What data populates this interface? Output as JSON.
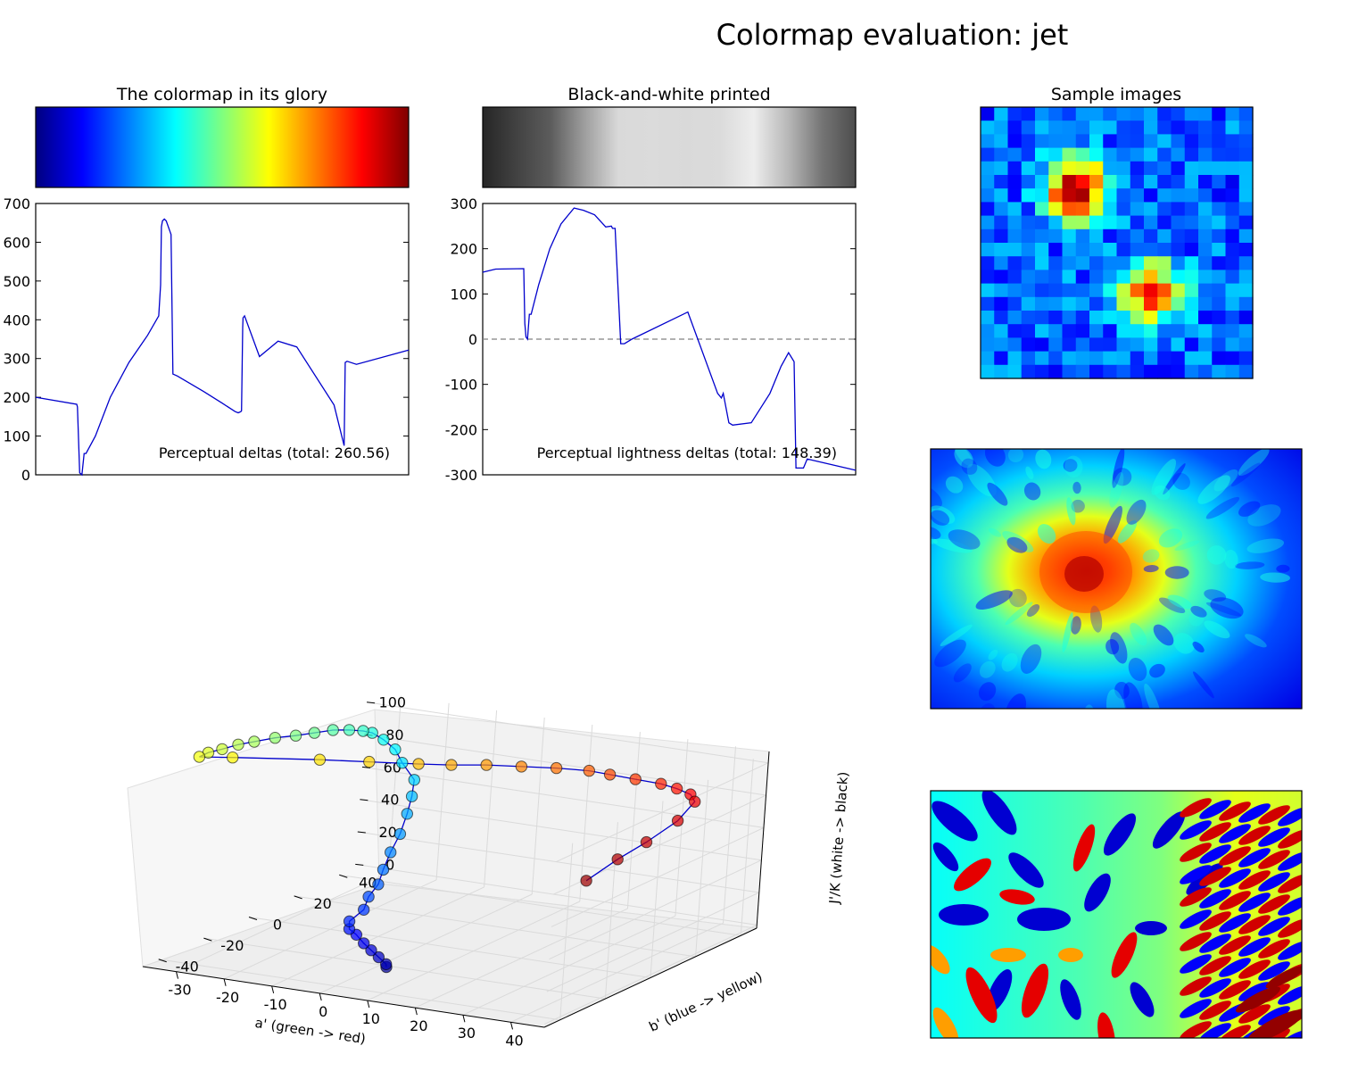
{
  "figure": {
    "title": "Colormap evaluation: jet",
    "colormap_name": "jet",
    "colormap_stops": [
      "#00007f",
      "#0000ff",
      "#007fff",
      "#00ffff",
      "#7fff7f",
      "#ffff00",
      "#ff7f00",
      "#ff0000",
      "#7f0000"
    ],
    "line_color": "#0000cc"
  },
  "chart_data": [
    {
      "type": "colorbar",
      "title": "The colormap in its glory",
      "colormap": "jet"
    },
    {
      "type": "colorbar",
      "title": "Black-and-white printed",
      "colormap": "jet-grayscale",
      "gray_levels": [
        0.15,
        0.26,
        0.36,
        0.62,
        0.85,
        0.86,
        0.85,
        0.86,
        0.93,
        0.72,
        0.46,
        0.3
      ]
    },
    {
      "type": "line",
      "annotation": "Perceptual deltas (total: 260.56)",
      "xlim": [
        0,
        1
      ],
      "ylim": [
        0,
        700
      ],
      "yticks": [
        0,
        100,
        200,
        300,
        400,
        500,
        600,
        700
      ],
      "x": [
        0,
        0.11,
        0.112,
        0.118,
        0.124,
        0.13,
        0.135,
        0.16,
        0.2,
        0.25,
        0.3,
        0.33,
        0.335,
        0.337,
        0.34,
        0.345,
        0.35,
        0.363,
        0.368,
        0.38,
        0.45,
        0.5,
        0.535,
        0.543,
        0.55,
        0.552,
        0.555,
        0.556,
        0.56,
        0.6,
        0.65,
        0.7,
        0.8,
        0.827,
        0.83,
        0.835,
        0.86,
        1.0
      ],
      "y": [
        200,
        182,
        175,
        5,
        0,
        55,
        55,
        100,
        200,
        290,
        360,
        410,
        490,
        640,
        655,
        660,
        655,
        620,
        260,
        255,
        215,
        185,
        163,
        160,
        163,
        165,
        380,
        405,
        410,
        305,
        345,
        330,
        180,
        75,
        290,
        293,
        285,
        322
      ]
    },
    {
      "type": "line",
      "annotation": "Perceptual lightness deltas (total: 148.39)",
      "xlim": [
        0,
        1
      ],
      "ylim": [
        -300,
        300
      ],
      "yticks": [
        -300,
        -200,
        -100,
        0,
        100,
        200,
        300
      ],
      "reference_line": 0,
      "x": [
        0,
        0.035,
        0.11,
        0.113,
        0.116,
        0.12,
        0.125,
        0.13,
        0.15,
        0.18,
        0.21,
        0.245,
        0.27,
        0.3,
        0.33,
        0.345,
        0.348,
        0.355,
        0.37,
        0.375,
        0.38,
        0.4,
        0.55,
        0.63,
        0.64,
        0.645,
        0.66,
        0.67,
        0.72,
        0.77,
        0.8,
        0.82,
        0.835,
        0.84,
        0.86,
        0.87,
        1.0
      ],
      "y": [
        148,
        155,
        156,
        35,
        5,
        0,
        55,
        55,
        120,
        200,
        255,
        290,
        285,
        275,
        248,
        250,
        245,
        245,
        -10,
        -10,
        -10,
        0,
        60,
        -120,
        -130,
        -120,
        -185,
        -190,
        -185,
        -120,
        -60,
        -30,
        -50,
        -285,
        -285,
        -265,
        -290
      ]
    },
    {
      "type": "heatmap",
      "title": "Sample images",
      "description": "20x20 random-walk values rendered with jet"
    },
    {
      "type": "heatmap",
      "description": "terrain elevation rendered with jet"
    },
    {
      "type": "heatmap",
      "description": "oscillating interference pattern rendered with jet"
    },
    {
      "type": "scatter3d",
      "xlabel": "a' (green -> red)",
      "ylabel": "b' (blue -> yellow)",
      "zlabel": "J'/K (white -> black)",
      "xticks": [
        -30,
        -20,
        -10,
        0,
        10,
        20,
        30,
        40
      ],
      "yticks": [
        -40,
        -20,
        0,
        20,
        40
      ],
      "zticks": [
        0,
        20,
        40,
        60,
        80,
        100
      ],
      "a": [
        8,
        7,
        4,
        1,
        -2,
        -5,
        -7,
        -8,
        -7,
        -8,
        -8,
        -9,
        -10,
        -11,
        -13,
        -15,
        -17,
        -22,
        -25,
        -28,
        -30,
        -31,
        -33,
        -35,
        -37,
        -39,
        -41,
        -43,
        -44,
        -45,
        -46,
        -46,
        -40,
        -26,
        -18,
        -10,
        -5,
        0,
        5,
        10,
        15,
        18,
        22,
        26,
        28,
        30,
        31,
        30,
        27,
        24,
        21
      ],
      "b": [
        -35,
        -33,
        -30,
        -27,
        -24,
        -21,
        -20,
        -18,
        -14,
        -10,
        -6,
        -2,
        3,
        9,
        16,
        22,
        27,
        32,
        35,
        36,
        35,
        33,
        31,
        28,
        24,
        20,
        15,
        10,
        5,
        0,
        -4,
        -8,
        -6,
        3,
        8,
        13,
        17,
        22,
        27,
        32,
        36,
        39,
        42,
        45,
        48,
        50,
        50,
        45,
        38,
        32,
        25
      ],
      "J": [
        10,
        10,
        11,
        12,
        13,
        15,
        17,
        20,
        25,
        30,
        35,
        41,
        48,
        55,
        62,
        68,
        74,
        79,
        84,
        88,
        92,
        94,
        95,
        96,
        96,
        96,
        97,
        97,
        98,
        98,
        98,
        98,
        99,
        98,
        97,
        96,
        95,
        94,
        92,
        90,
        88,
        85,
        82,
        79,
        75,
        71,
        67,
        58,
        48,
        40,
        30
      ]
    }
  ]
}
